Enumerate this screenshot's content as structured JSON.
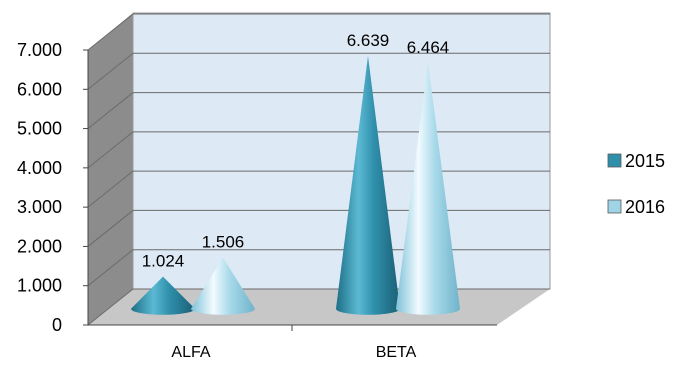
{
  "chart_data": {
    "type": "bar",
    "style": "3d-cone",
    "categories": [
      "ALFA",
      "BETA"
    ],
    "series": [
      {
        "name": "2015",
        "values": [
          1024,
          6639
        ],
        "labels": [
          "1.024",
          "6.639"
        ],
        "color": "#2f8fab"
      },
      {
        "name": "2016",
        "values": [
          1506,
          6464
        ],
        "labels": [
          "1.506",
          "6.464"
        ],
        "color": "#9fd3e6"
      }
    ],
    "yticks": [
      "0",
      "1.000",
      "2.000",
      "3.000",
      "4.000",
      "5.000",
      "6.000",
      "7.000"
    ],
    "ylim": [
      0,
      7000
    ],
    "grid": true,
    "legend_position": "right",
    "colors": {
      "wall": "#dde9f5",
      "side_wall": "#8c8c8c",
      "floor": "#c7c7c7",
      "grid": "#6b6b6b"
    }
  }
}
